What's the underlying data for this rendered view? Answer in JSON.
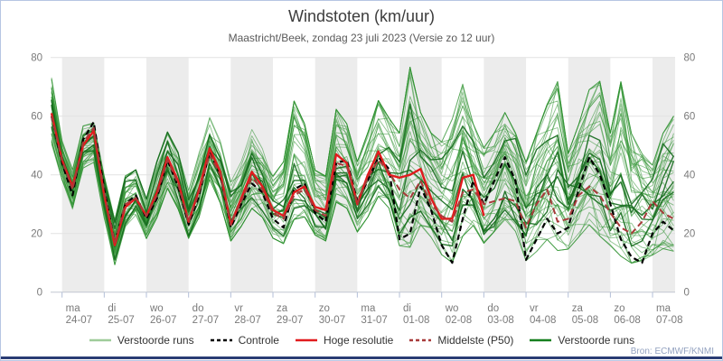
{
  "chart_data": {
    "type": "line",
    "title": "Windstoten (km/uur)",
    "subtitle": "Maastricht/Beek, zondag 23 juli 2023 (Versie zo 12 uur)",
    "source": "Bron: ECMWF/KNMI",
    "ylim": [
      0,
      80
    ],
    "yticks": [
      0,
      20,
      40,
      60,
      80
    ],
    "x_step_hours": 6,
    "x_start_offset_days": -0.25,
    "days": [
      {
        "dow": "ma",
        "date": "24-07"
      },
      {
        "dow": "di",
        "date": "25-07"
      },
      {
        "dow": "wo",
        "date": "26-07"
      },
      {
        "dow": "do",
        "date": "27-07"
      },
      {
        "dow": "vr",
        "date": "28-07"
      },
      {
        "dow": "za",
        "date": "29-07"
      },
      {
        "dow": "zo",
        "date": "30-07"
      },
      {
        "dow": "ma",
        "date": "31-07"
      },
      {
        "dow": "di",
        "date": "01-08"
      },
      {
        "dow": "wo",
        "date": "02-08"
      },
      {
        "dow": "do",
        "date": "03-08"
      },
      {
        "dow": "vr",
        "date": "04-08"
      },
      {
        "dow": "za",
        "date": "05-08"
      },
      {
        "dow": "zo",
        "date": "06-08"
      },
      {
        "dow": "ma",
        "date": "07-08"
      }
    ],
    "series": [
      {
        "name": "Controle",
        "style": "dashed",
        "color": "#000000",
        "width": 2.2,
        "dash": "6,4",
        "values": [
          60,
          44,
          33,
          52,
          58,
          35,
          17,
          30,
          33,
          25,
          32,
          45,
          36,
          23,
          33,
          48,
          40,
          22,
          30,
          37,
          34,
          25,
          22,
          35,
          37,
          27,
          24,
          44,
          45,
          31,
          38,
          46,
          42,
          18,
          20,
          36,
          28,
          16,
          10,
          25,
          38,
          30,
          38,
          46,
          38,
          11,
          18,
          25,
          20,
          22,
          35,
          46,
          40,
          30,
          18,
          12,
          10,
          20,
          24,
          21
        ]
      },
      {
        "name": "Hoge resolutie",
        "style": "solid",
        "color": "#e11b1e",
        "width": 2.4,
        "dash": "",
        "values": [
          61,
          45,
          36,
          50,
          55,
          33,
          16,
          29,
          32,
          26,
          34,
          46,
          38,
          24,
          35,
          49,
          41,
          23,
          32,
          41,
          36,
          28,
          26,
          34,
          36,
          29,
          28,
          47,
          44,
          30,
          40,
          48,
          40,
          39,
          40,
          42,
          32,
          25,
          25,
          39,
          40,
          26
        ]
      },
      {
        "name": "Middelste (P50)",
        "style": "dashed",
        "color": "#a83a3a",
        "width": 2.0,
        "dash": "7,4",
        "values": [
          60,
          45,
          35,
          51,
          56,
          34,
          17,
          30,
          32,
          26,
          33,
          45,
          37,
          24,
          34,
          47,
          40,
          23,
          31,
          39,
          35,
          27,
          25,
          33,
          35,
          28,
          26,
          44,
          43,
          30,
          39,
          45,
          41,
          35,
          32,
          38,
          30,
          26,
          24,
          34,
          35,
          30,
          31,
          32,
          31,
          22,
          30,
          35,
          24,
          25,
          33,
          36,
          33,
          27,
          22,
          20,
          24,
          31,
          27,
          25
        ]
      }
    ],
    "ensemble": {
      "name": "Verstoorde runs",
      "count": 48,
      "color_light": "#2e9230",
      "color_dark": "#156c1d",
      "min": [
        50,
        38,
        28,
        42,
        44,
        25,
        9,
        22,
        26,
        18,
        25,
        35,
        28,
        18,
        25,
        38,
        30,
        17,
        22,
        28,
        25,
        18,
        16,
        24,
        25,
        19,
        17,
        30,
        28,
        20,
        25,
        32,
        28,
        15,
        14,
        22,
        18,
        12,
        9,
        18,
        22,
        16,
        20,
        24,
        20,
        10,
        13,
        17,
        13,
        14,
        18,
        22,
        18,
        15,
        11,
        9,
        10,
        12,
        14,
        13
      ],
      "max": [
        74,
        52,
        42,
        57,
        58,
        40,
        25,
        40,
        42,
        32,
        45,
        55,
        48,
        35,
        48,
        60,
        52,
        38,
        45,
        56,
        50,
        40,
        45,
        66,
        58,
        42,
        40,
        63,
        58,
        45,
        55,
        66,
        60,
        55,
        78,
        62,
        55,
        52,
        60,
        72,
        58,
        50,
        55,
        62,
        55,
        45,
        55,
        65,
        73,
        48,
        58,
        70,
        73,
        55,
        73,
        55,
        48,
        45,
        55,
        61
      ]
    },
    "legend": [
      {
        "label": "Verstoorde runs",
        "color": "#9fcc9a",
        "width": 2.5,
        "dash": ""
      },
      {
        "label": "Controle",
        "color": "#000000",
        "width": 2.5,
        "dash": "4,3"
      },
      {
        "label": "Hoge resolutie",
        "color": "#e11b1e",
        "width": 2.5,
        "dash": ""
      },
      {
        "label": "Middelste (P50)",
        "color": "#a83a3a",
        "width": 2.5,
        "dash": "4,3"
      },
      {
        "label": "Verstoorde runs",
        "color": "#157f1f",
        "width": 2.5,
        "dash": ""
      }
    ],
    "layout": {
      "band_color": "#ececec",
      "grid_color": "#e2e2e2",
      "axis_color": "#c2c7d1",
      "tick_color": "#b3bfd8",
      "label_color": "#7a7a7a",
      "accent_bar_color": "#2a3c74",
      "border_color": "#b6c5e3"
    }
  }
}
